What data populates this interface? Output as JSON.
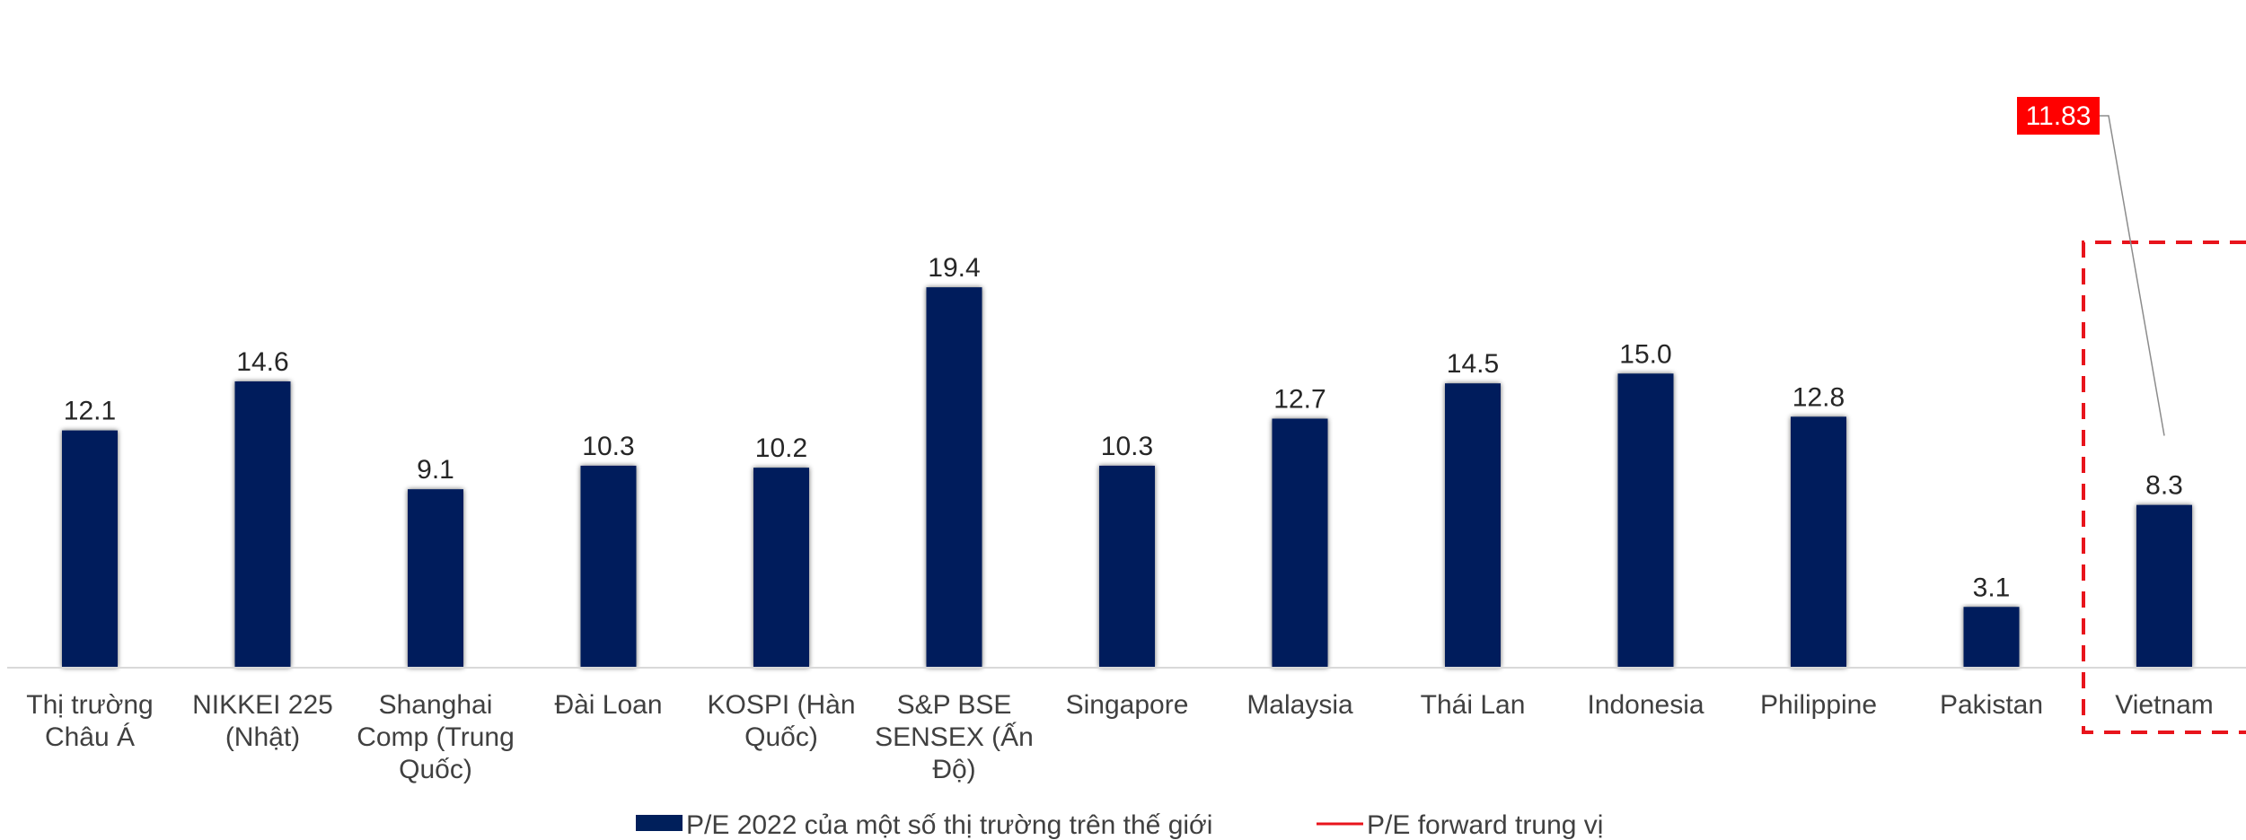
{
  "chart_data": {
    "type": "bar",
    "categories": [
      [
        "Thị trường",
        "Châu Á"
      ],
      [
        "NIKKEI 225",
        "(Nhật)"
      ],
      [
        "Shanghai",
        "Comp (Trung",
        "Quốc)"
      ],
      [
        "Đài Loan"
      ],
      [
        "KOSPI (Hàn",
        "Quốc)"
      ],
      [
        "S&P BSE",
        "SENSEX (Ấn",
        "Độ)"
      ],
      [
        "Singapore"
      ],
      [
        "Malaysia"
      ],
      [
        "Thái Lan"
      ],
      [
        "Indonesia"
      ],
      [
        "Philippine"
      ],
      [
        "Pakistan"
      ],
      [
        "Vietnam"
      ]
    ],
    "values": [
      12.1,
      14.6,
      9.1,
      10.3,
      10.2,
      19.4,
      10.3,
      12.7,
      14.5,
      15.0,
      12.8,
      3.1,
      8.3
    ],
    "value_labels": [
      "12.1",
      "14.6",
      "9.1",
      "10.3",
      "10.2",
      "19.4",
      "10.3",
      "12.7",
      "14.5",
      "15.0",
      "12.8",
      "3.1",
      "8.3"
    ],
    "reference_line": {
      "name": "P/E forward trung vị",
      "value": 11.83,
      "label": "11.83"
    },
    "series_name": "P/E 2022 của một số thị trường trên thế giới",
    "ylim": [
      0,
      20
    ],
    "highlight_category_index": 12,
    "legend_position": "bottom",
    "grid": false,
    "colors": {
      "bar": "#001F5B",
      "line": "#E8141C",
      "callout_bg": "#FF0000",
      "highlight_box": "#E8141C",
      "axis": "#D9D9D9"
    }
  }
}
